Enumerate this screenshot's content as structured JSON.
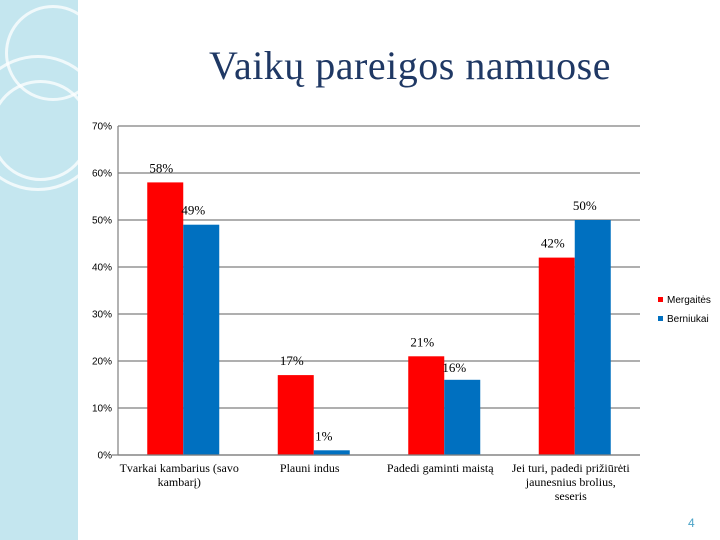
{
  "slide": {
    "title": "Vaikų pareigos namuose",
    "number": "4"
  },
  "colors": {
    "strip": "#c4e6ef",
    "girls": "#ff0000",
    "boys": "#0070c0"
  },
  "chart_data": {
    "type": "bar",
    "categories": [
      [
        "Tvarkai kambarius (savo",
        "kambarį)"
      ],
      [
        "Plauni indus"
      ],
      [
        "Padedi gaminti maistą"
      ],
      [
        "Jei turi, padedi prižiūrėti",
        "jaunesnius brolius,",
        "seseris"
      ]
    ],
    "series": [
      {
        "name": "Mergaitės",
        "color": "#ff0000",
        "values": [
          58,
          17,
          21,
          42
        ],
        "labels": [
          "58%",
          "17%",
          "21%",
          "42%"
        ]
      },
      {
        "name": "Berniukai",
        "color": "#0070c0",
        "values": [
          49,
          1,
          16,
          50
        ],
        "labels": [
          "49%",
          "1%",
          "16%",
          "50%"
        ]
      }
    ],
    "yticks": [
      "0%",
      "10%",
      "20%",
      "30%",
      "40%",
      "50%",
      "60%",
      "70%"
    ],
    "ylim": [
      0,
      70
    ],
    "grid": true,
    "legend": "right"
  }
}
